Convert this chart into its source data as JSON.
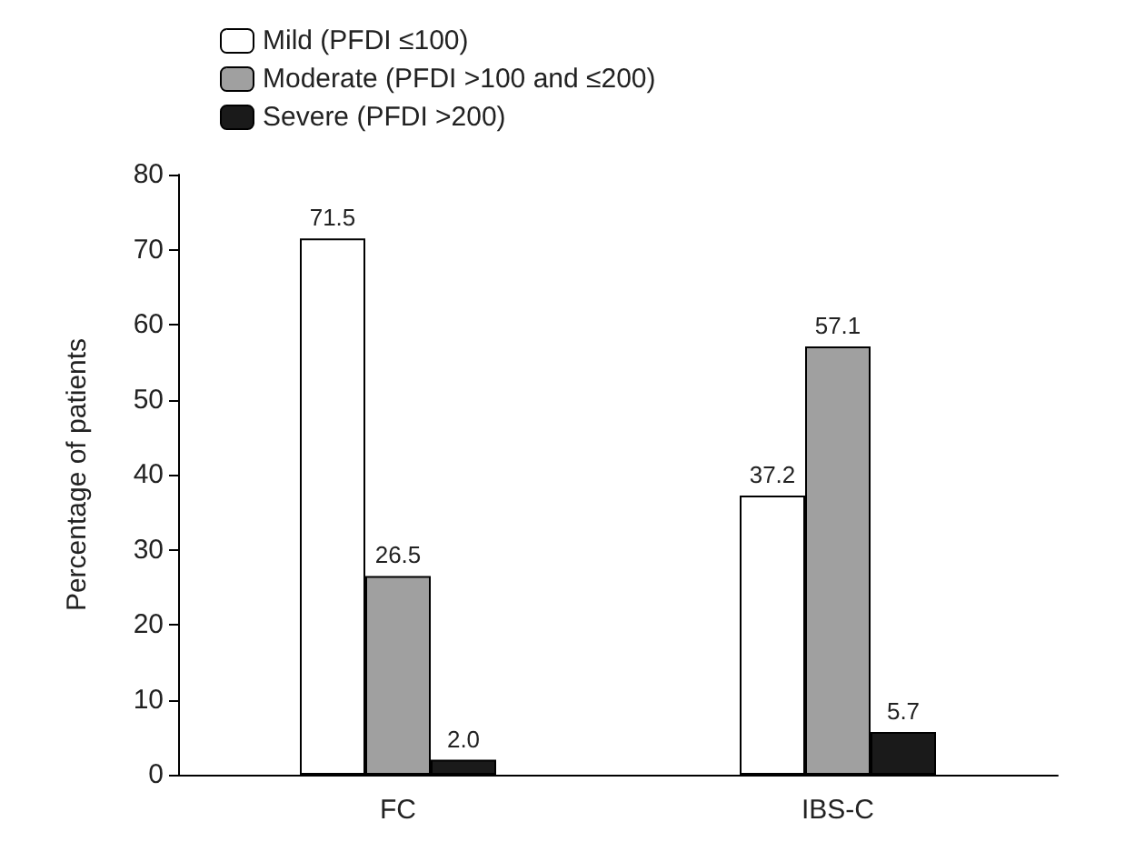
{
  "chart_data": {
    "type": "bar",
    "ylabel": "Percentage of patients",
    "categories": [
      "FC",
      "IBS-C"
    ],
    "series": [
      {
        "name": "Mild (PFDI ≤100)",
        "color": "#ffffff",
        "values": [
          71.5,
          37.2
        ],
        "value_labels": [
          "71.5",
          "37.2"
        ]
      },
      {
        "name": "Moderate (PFDI >100 and ≤200)",
        "color": "#a0a0a0",
        "values": [
          26.5,
          57.1
        ],
        "value_labels": [
          "26.5",
          "57.1"
        ]
      },
      {
        "name": "Severe (PFDI >200)",
        "color": "#1a1a1a",
        "values": [
          2.0,
          5.7
        ],
        "value_labels": [
          "2.0",
          "5.7"
        ]
      }
    ],
    "ylim": [
      0,
      80
    ],
    "yticks": [
      0,
      10,
      20,
      30,
      40,
      50,
      60,
      70,
      80
    ],
    "grid": false,
    "legend": "top left"
  }
}
